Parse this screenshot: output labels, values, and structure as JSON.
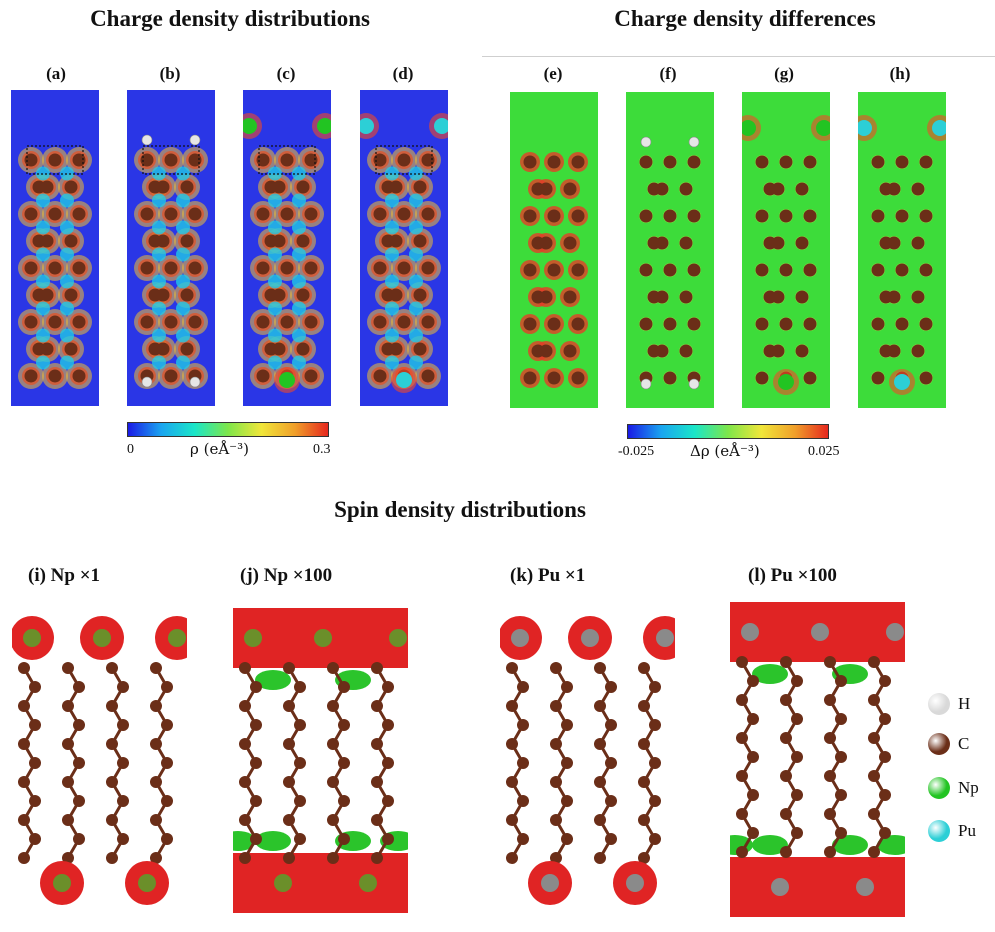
{
  "titles": {
    "charge": "Charge density distributions",
    "diff": "Charge density differences",
    "spin": "Spin density distributions"
  },
  "panels_top": [
    "(a)",
    "(b)",
    "(c)",
    "(d)",
    "(e)",
    "(f)",
    "(g)",
    "(h)"
  ],
  "panels_bottom": [
    "(i) Np ×1",
    "(j) Np ×100",
    "(k) Pu ×1",
    "(l) Pu ×100"
  ],
  "colorbar_rho": {
    "min": "0",
    "max": "0.3",
    "label": "ρ (eÅ⁻³)"
  },
  "colorbar_drho": {
    "min": "-0.025",
    "max": "0.025",
    "label": "Δρ (eÅ⁻³)"
  },
  "legend": [
    {
      "symbol": "H",
      "color": "#d9d9d9"
    },
    {
      "symbol": "C",
      "color": "#6b2e18"
    },
    {
      "symbol": "Np",
      "color": "#22c422"
    },
    {
      "symbol": "Pu",
      "color": "#2ccfd6"
    }
  ],
  "colors": {
    "rho_bg": "#2a36e6",
    "diff_bg": "#3ddc3a",
    "carbon": "#6b2e18",
    "spin_red": "#e02424",
    "spin_green": "#2bc42b"
  }
}
